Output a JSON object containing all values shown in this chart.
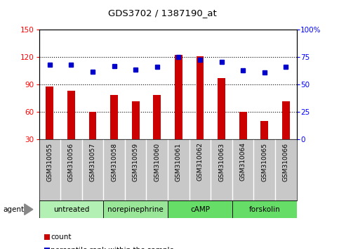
{
  "title": "GDS3702 / 1387190_at",
  "samples": [
    "GSM310055",
    "GSM310056",
    "GSM310057",
    "GSM310058",
    "GSM310059",
    "GSM310060",
    "GSM310061",
    "GSM310062",
    "GSM310063",
    "GSM310064",
    "GSM310065",
    "GSM310066"
  ],
  "counts": [
    88,
    83,
    60,
    79,
    72,
    79,
    123,
    121,
    97,
    60,
    50,
    72
  ],
  "percentiles": [
    68,
    68,
    62,
    67,
    64,
    66,
    75,
    73,
    71,
    63,
    61,
    66
  ],
  "groups": [
    {
      "label": "untreated",
      "start": 0,
      "end": 3,
      "color": "#b3f0b3"
    },
    {
      "label": "norepinephrine",
      "start": 3,
      "end": 6,
      "color": "#99e699"
    },
    {
      "label": "cAMP",
      "start": 6,
      "end": 9,
      "color": "#66dd66"
    },
    {
      "label": "forskolin",
      "start": 9,
      "end": 12,
      "color": "#66dd66"
    }
  ],
  "ylim_left": [
    30,
    150
  ],
  "ylim_right": [
    0,
    100
  ],
  "yticks_left": [
    30,
    60,
    90,
    120,
    150
  ],
  "yticks_right": [
    0,
    25,
    50,
    75,
    100
  ],
  "bar_color": "#cc0000",
  "marker_color": "#0000cc",
  "bg_sample_row": "#c8c8c8",
  "agent_label": "agent"
}
